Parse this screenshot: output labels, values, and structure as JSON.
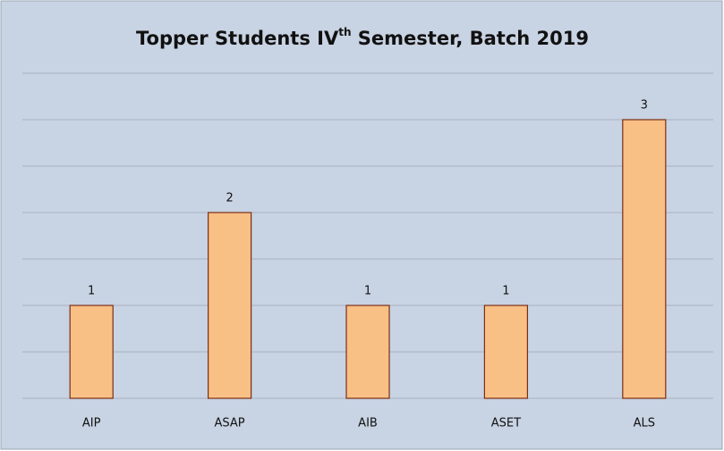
{
  "chart_data": {
    "type": "bar",
    "title": [
      "Topper Students IV",
      "th",
      " Semester, Batch 2019"
    ],
    "categories": [
      "AIP",
      "ASAP",
      "AIB",
      "ASET",
      "ALS"
    ],
    "values": [
      1,
      2,
      1,
      1,
      3
    ],
    "color": "#f9c086",
    "ylim": [
      0,
      3.5
    ],
    "yticks": [
      0,
      0.5,
      1,
      1.5,
      2,
      2.5,
      3,
      3.5
    ],
    "grid": true
  }
}
